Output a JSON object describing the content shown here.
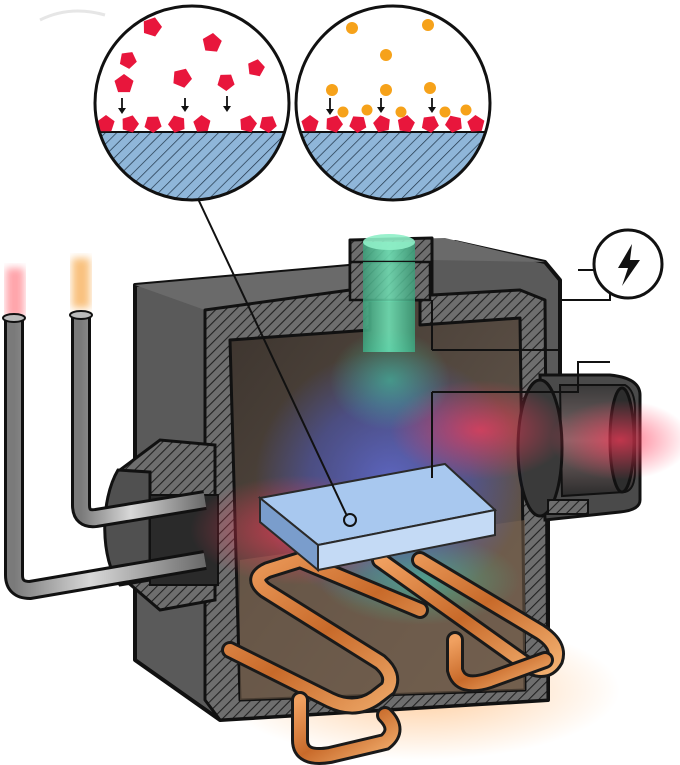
{
  "diagram": {
    "components": [
      {
        "name": "gas-inlet-tube-red",
        "color": "#ff4d5a"
      },
      {
        "name": "gas-inlet-tube-orange",
        "color": "#f6a13a"
      },
      {
        "name": "vacuum-exhaust-port",
        "color": "#ff5b6e"
      },
      {
        "name": "gas-nozzle-top",
        "color": "#4fc79a"
      },
      {
        "name": "reaction-chamber",
        "color": "#565656"
      },
      {
        "name": "substrate-wafer",
        "color": "#a8c8ef"
      },
      {
        "name": "heating-coils",
        "color": "#e07c35"
      },
      {
        "name": "power-source",
        "icon": "lightning-bolt-icon"
      }
    ],
    "insets": [
      {
        "name": "inset-precursor-a-adsorption",
        "particle_color": "#e8163c",
        "particle_shape": "pentagon"
      },
      {
        "name": "inset-precursor-b-reaction",
        "particle_color": "#f6a21a",
        "particle_shape": "blob"
      }
    ],
    "surface_color": "#8fb6d9"
  }
}
